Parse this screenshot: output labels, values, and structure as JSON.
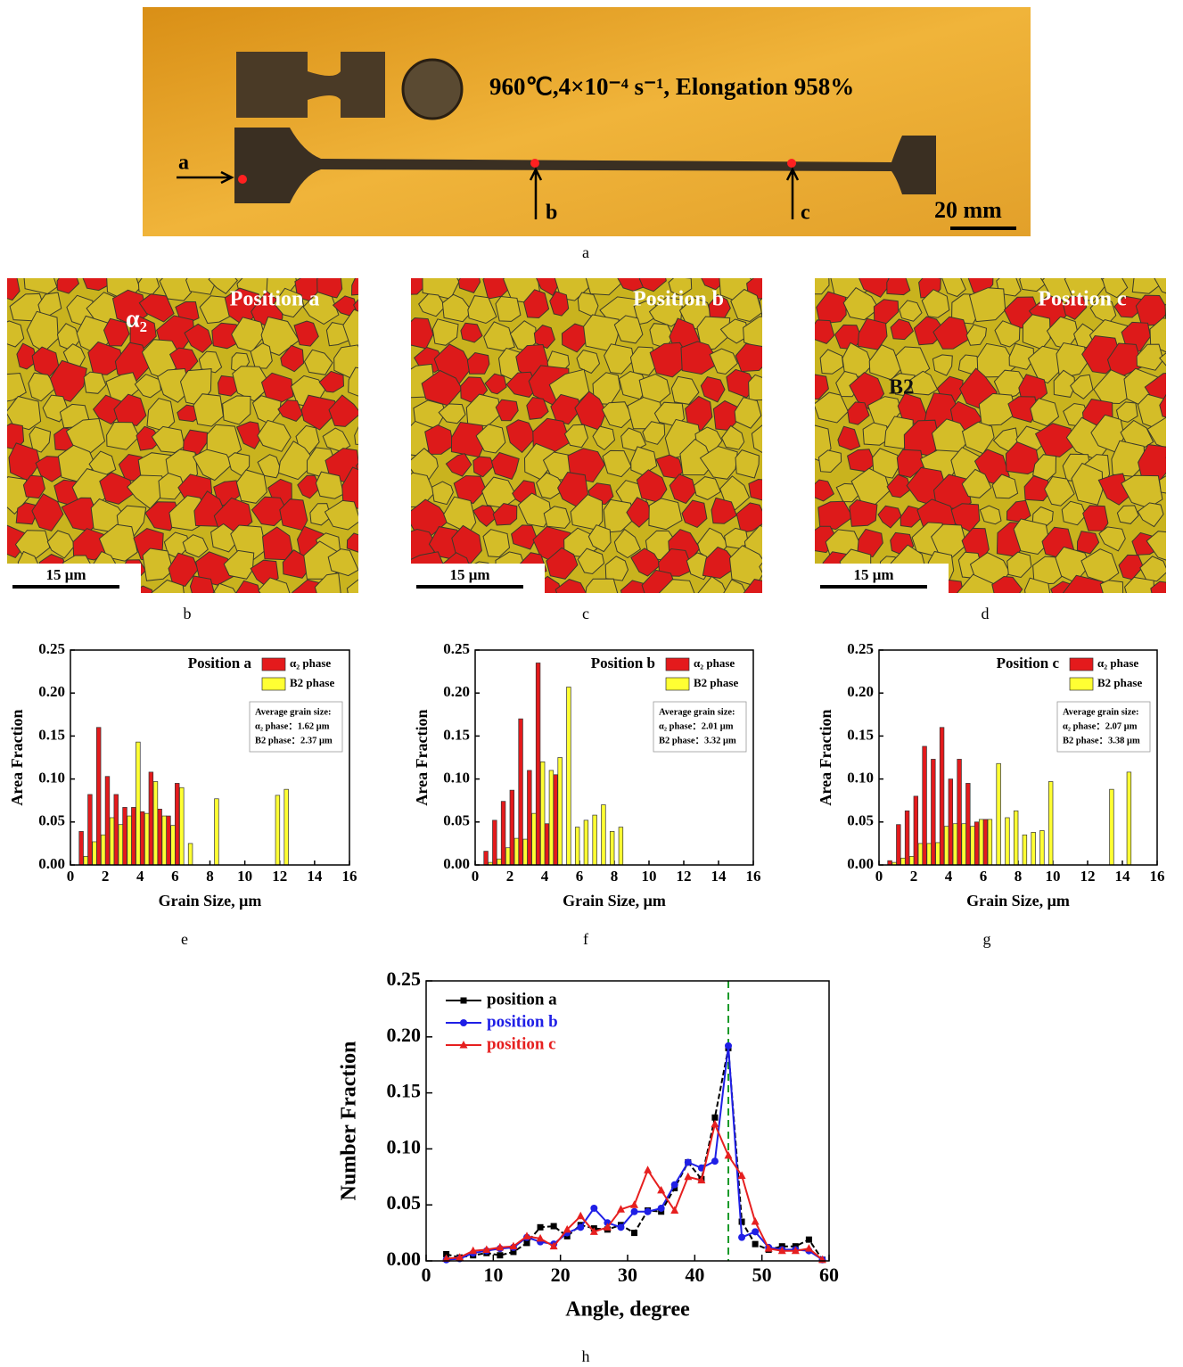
{
  "panel_labels": [
    "a",
    "b",
    "c",
    "d",
    "e",
    "f",
    "g",
    "h"
  ],
  "photo": {
    "caption": "960℃,4×10⁻⁴ s⁻¹, Elongation 958%",
    "markers": [
      "a",
      "b",
      "c"
    ],
    "scale_bar": "20 mm"
  },
  "micrographs": [
    {
      "label": "Position a",
      "phase_label": "α₂",
      "scale_bar": "15 μm"
    },
    {
      "label": "Position b",
      "scale_bar": "15 μm"
    },
    {
      "label": "Position c",
      "phase_label": "B2",
      "scale_bar": "15 μm"
    }
  ],
  "chart_data": [
    {
      "type": "bar",
      "title": "Position a",
      "xlabel": "Grain Size, μm",
      "ylabel": "Area Fraction",
      "x": [
        0.75,
        1.25,
        1.75,
        2.25,
        2.75,
        3.25,
        3.75,
        4.25,
        4.75,
        5.25,
        5.75,
        6.25,
        6.75,
        8.25,
        11.75,
        12.25
      ],
      "series": [
        {
          "name": "α₂ phase",
          "color": "#e41a1c",
          "values": [
            0.039,
            0.082,
            0.16,
            0.103,
            0.082,
            0.067,
            0.067,
            0.062,
            0.108,
            0.065,
            0.057,
            0.095,
            null,
            null,
            null,
            null
          ]
        },
        {
          "name": "B2 phase",
          "color": "#ffff33",
          "values": [
            0.01,
            0.027,
            0.035,
            0.055,
            0.047,
            0.057,
            0.143,
            0.06,
            0.097,
            0.057,
            0.046,
            0.09,
            0.025,
            0.077,
            0.081,
            0.088
          ]
        }
      ],
      "annotation": [
        "Average grain size:",
        "α₂ phase：1.62 μm",
        "B2 phase：2.37 μm"
      ],
      "xlim": [
        0,
        16
      ],
      "xticks": [
        0,
        2,
        4,
        6,
        8,
        10,
        12,
        14,
        16
      ],
      "ylim": [
        0,
        0.25
      ],
      "yticks": [
        {
          "value": 0,
          "label": "0.00"
        },
        0.05,
        {
          "value": 0.1,
          "label": "0.10"
        },
        0.15,
        {
          "value": 0.2,
          "label": "0.20"
        },
        0.25
      ]
    },
    {
      "type": "bar",
      "title": "Position b",
      "xlabel": "Grain Size, μm",
      "ylabel": "Area Fraction",
      "x": [
        0.75,
        1.25,
        1.75,
        2.25,
        2.75,
        3.25,
        3.75,
        4.25,
        4.75,
        5.25,
        5.75,
        6.25,
        6.75,
        7.25,
        7.75,
        8.25
      ],
      "series": [
        {
          "name": "α₂ phase",
          "color": "#e41a1c",
          "values": [
            0.016,
            0.052,
            0.074,
            0.087,
            0.17,
            0.11,
            0.235,
            0.048,
            0.105,
            null,
            null,
            null,
            null,
            null,
            null,
            null
          ]
        },
        {
          "name": "B2 phase",
          "color": "#ffff33",
          "values": [
            0.003,
            0.007,
            0.02,
            0.031,
            0.03,
            0.06,
            0.12,
            0.11,
            0.125,
            0.207,
            0.044,
            0.052,
            0.058,
            0.07,
            0.039,
            0.044
          ]
        }
      ],
      "annotation": [
        "Average grain size:",
        "α₂ phase：2.01 μm",
        "B2 phase：3.32 μm"
      ],
      "xlim": [
        0,
        16
      ],
      "xticks": [
        0,
        2,
        4,
        6,
        8,
        10,
        12,
        14,
        16
      ],
      "ylim": [
        0,
        0.25
      ],
      "yticks": [
        {
          "value": 0,
          "label": "0.00"
        },
        0.05,
        {
          "value": 0.1,
          "label": "0.10"
        },
        0.15,
        {
          "value": 0.2,
          "label": "0.20"
        },
        0.25
      ]
    },
    {
      "type": "bar",
      "title": "Position c",
      "xlabel": "Grain Size, μm",
      "ylabel": "Area Fraction",
      "x": [
        0.75,
        1.25,
        1.75,
        2.25,
        2.75,
        3.25,
        3.75,
        4.25,
        4.75,
        5.25,
        5.75,
        6.25,
        6.75,
        7.25,
        7.75,
        8.25,
        8.75,
        9.25,
        9.75,
        13.25,
        14.25
      ],
      "series": [
        {
          "name": "α₂ phase",
          "color": "#e41a1c",
          "values": [
            0.005,
            0.047,
            0.063,
            0.08,
            0.138,
            0.123,
            0.16,
            0.1,
            0.123,
            0.095,
            0.05,
            0.053,
            null,
            null,
            null,
            null,
            null,
            null,
            null,
            null,
            null
          ]
        },
        {
          "name": "B2 phase",
          "color": "#ffff33",
          "values": [
            0.003,
            0.008,
            0.01,
            0.025,
            0.025,
            0.026,
            0.045,
            0.048,
            0.048,
            0.045,
            0.053,
            0.053,
            0.118,
            0.055,
            0.063,
            0.035,
            0.038,
            0.04,
            0.097,
            0.088,
            0.108
          ]
        }
      ],
      "annotation": [
        "Average grain size:",
        "α₂ phase：2.07 μm",
        "B2 phase：3.38 μm"
      ],
      "xlim": [
        0,
        16
      ],
      "xticks": [
        0,
        2,
        4,
        6,
        8,
        10,
        12,
        14,
        16
      ],
      "ylim": [
        0,
        0.25
      ],
      "yticks": [
        {
          "value": 0,
          "label": "0.00"
        },
        0.05,
        {
          "value": 0.1,
          "label": "0.10"
        },
        0.15,
        {
          "value": 0.2,
          "label": "0.20"
        },
        0.25
      ]
    },
    {
      "type": "line",
      "xlabel": "Angle, degree",
      "ylabel": "Number Fraction",
      "x": [
        3,
        5,
        7,
        9,
        11,
        13,
        15,
        17,
        19,
        21,
        23,
        25,
        27,
        29,
        31,
        33,
        35,
        37,
        39,
        41,
        43,
        45,
        47,
        49,
        51,
        53,
        55,
        57,
        59
      ],
      "series": [
        {
          "name": "position a",
          "color": "#000000",
          "marker": "square",
          "values": [
            0.006,
            0.003,
            0.005,
            0.007,
            0.005,
            0.008,
            0.016,
            0.03,
            0.031,
            0.022,
            0.032,
            0.029,
            0.028,
            0.032,
            0.025,
            0.045,
            0.044,
            0.065,
            0.088,
            0.073,
            0.128,
            0.19,
            0.035,
            0.015,
            0.01,
            0.013,
            0.013,
            0.019,
            0.001
          ]
        },
        {
          "name": "position b",
          "color": "#1f1fe6",
          "marker": "circle",
          "values": [
            0.001,
            0.002,
            0.007,
            0.009,
            0.011,
            0.012,
            0.021,
            0.017,
            0.015,
            0.025,
            0.03,
            0.047,
            0.034,
            0.03,
            0.044,
            0.044,
            0.047,
            0.068,
            0.088,
            0.083,
            0.089,
            0.192,
            0.021,
            0.026,
            0.012,
            0.01,
            0.01,
            0.009,
            0.001
          ]
        },
        {
          "name": "position c",
          "color": "#e61f1f",
          "marker": "triangle",
          "values": [
            0.002,
            0.003,
            0.009,
            0.01,
            0.012,
            0.013,
            0.022,
            0.02,
            0.013,
            0.028,
            0.04,
            0.026,
            0.03,
            0.046,
            0.05,
            0.081,
            0.063,
            0.045,
            0.075,
            0.072,
            0.122,
            0.094,
            0.076,
            0.035,
            0.011,
            0.009,
            0.009,
            0.011,
            0.001
          ]
        }
      ],
      "reference_line": {
        "x": 45,
        "color": "#1a9a2a"
      },
      "xlim": [
        0,
        60
      ],
      "xticks": [
        0,
        10,
        20,
        30,
        40,
        50,
        60
      ],
      "ylim": [
        0,
        0.25
      ],
      "yticks": [
        {
          "value": 0,
          "label": "0.00"
        },
        0.05,
        {
          "value": 0.1,
          "label": "0.10"
        },
        0.15,
        {
          "value": 0.2,
          "label": "0.20"
        },
        0.25
      ]
    }
  ]
}
